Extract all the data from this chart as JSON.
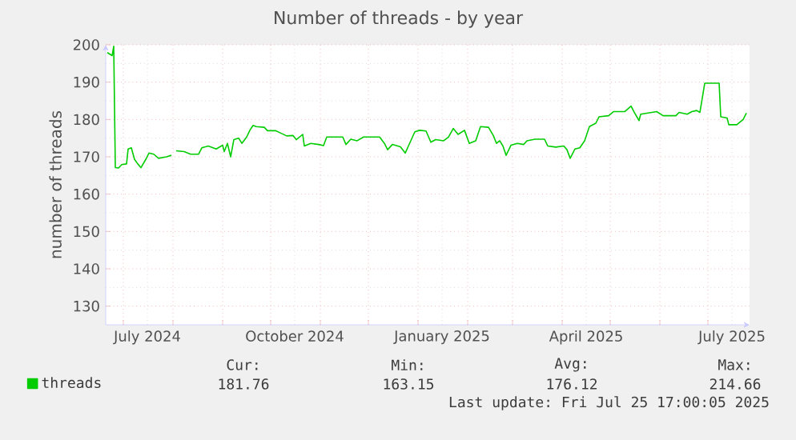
{
  "chart_data": {
    "type": "line",
    "title": "Number of threads - by year",
    "ylabel": "number of threads",
    "xlim": [
      "2024-06-20",
      "2025-07-27"
    ],
    "ylim": [
      125,
      200
    ],
    "yticks": [
      130,
      140,
      150,
      160,
      170,
      180,
      190,
      200
    ],
    "xticks": [
      {
        "value": "2024-07-01",
        "label": null
      },
      {
        "value": "2024-07-16",
        "label": "July 2024"
      },
      {
        "value": "2024-08-01",
        "label": null
      },
      {
        "value": "2024-09-01",
        "label": null
      },
      {
        "value": "2024-10-01",
        "label": null
      },
      {
        "value": "2024-10-16",
        "label": "October 2024"
      },
      {
        "value": "2024-11-01",
        "label": null
      },
      {
        "value": "2024-12-01",
        "label": null
      },
      {
        "value": "2025-01-01",
        "label": null
      },
      {
        "value": "2025-01-16",
        "label": "January 2025"
      },
      {
        "value": "2025-02-01",
        "label": null
      },
      {
        "value": "2025-03-01",
        "label": null
      },
      {
        "value": "2025-04-01",
        "label": null
      },
      {
        "value": "2025-04-16",
        "label": "April 2025"
      },
      {
        "value": "2025-05-01",
        "label": null
      },
      {
        "value": "2025-06-01",
        "label": null
      },
      {
        "value": "2025-07-01",
        "label": null
      },
      {
        "value": "2025-07-16",
        "label": "July 2025"
      }
    ],
    "grid": true,
    "legend": "bottom left",
    "x": [
      "2024-06-21",
      "2024-06-24",
      "2024-06-25",
      "2024-06-26",
      "2024-06-28",
      "2024-06-30",
      "2024-07-03",
      "2024-07-04",
      "2024-07-06",
      "2024-07-08",
      "2024-07-10",
      "2024-07-12",
      "2024-07-15",
      "2024-07-17",
      "2024-07-20",
      "2024-07-23",
      "2024-07-28",
      "2024-07-31",
      "2024-08-01",
      "2024-08-03",
      "2024-08-08",
      "2024-08-12",
      "2024-08-17",
      "2024-08-19",
      "2024-08-23",
      "2024-08-28",
      "2024-09-01",
      "2024-09-02",
      "2024-09-04",
      "2024-09-06",
      "2024-09-08",
      "2024-09-11",
      "2024-09-13",
      "2024-09-16",
      "2024-09-18",
      "2024-09-20",
      "2024-09-22",
      "2024-09-27",
      "2024-09-29",
      "2024-10-04",
      "2024-10-07",
      "2024-10-11",
      "2024-10-15",
      "2024-10-17",
      "2024-10-21",
      "2024-10-22",
      "2024-10-26",
      "2024-10-31",
      "2024-11-03",
      "2024-11-05",
      "2024-11-15",
      "2024-11-17",
      "2024-11-20",
      "2024-11-24",
      "2024-11-28",
      "2024-12-08",
      "2024-12-11",
      "2024-12-13",
      "2024-12-16",
      "2024-12-21",
      "2024-12-24",
      "2024-12-26",
      "2024-12-30",
      "2025-01-02",
      "2025-01-06",
      "2025-01-09",
      "2025-01-12",
      "2025-01-17",
      "2025-01-20",
      "2025-01-23",
      "2025-01-26",
      "2025-01-30",
      "2025-02-02",
      "2025-02-06",
      "2025-02-09",
      "2025-02-14",
      "2025-02-17",
      "2025-02-19",
      "2025-02-21",
      "2025-02-23",
      "2025-02-25",
      "2025-02-28",
      "2025-03-04",
      "2025-03-08",
      "2025-03-10",
      "2025-03-15",
      "2025-03-21",
      "2025-03-23",
      "2025-03-28",
      "2025-04-02",
      "2025-04-04",
      "2025-04-06",
      "2025-04-09",
      "2025-04-12",
      "2025-04-15",
      "2025-04-18",
      "2025-04-22",
      "2025-04-24",
      "2025-04-30",
      "2025-05-03",
      "2025-05-10",
      "2025-05-14",
      "2025-05-16",
      "2025-05-19",
      "2025-05-20",
      "2025-05-27",
      "2025-05-30",
      "2025-06-03",
      "2025-06-11",
      "2025-06-13",
      "2025-06-18",
      "2025-06-21",
      "2025-06-24",
      "2025-06-26",
      "2025-06-29",
      "2025-07-08",
      "2025-07-09",
      "2025-07-13",
      "2025-07-14",
      "2025-07-19",
      "2025-07-23",
      "2025-07-25"
    ],
    "series": [
      {
        "name": "threads",
        "color": "#00cc00",
        "values": [
          197.9,
          197.1,
          199.6,
          167.1,
          167.0,
          167.9,
          168.1,
          172.1,
          172.4,
          169.3,
          168.1,
          167.1,
          169.3,
          171.0,
          170.7,
          169.6,
          170.0,
          170.4,
          null,
          171.6,
          171.4,
          170.7,
          170.7,
          172.4,
          172.9,
          172.1,
          173.1,
          171.4,
          173.6,
          170.0,
          174.6,
          175.0,
          173.6,
          175.3,
          177.1,
          178.4,
          178.1,
          177.9,
          177.0,
          177.0,
          176.4,
          175.6,
          175.7,
          174.6,
          176.0,
          172.9,
          173.6,
          173.3,
          173.0,
          175.3,
          175.3,
          173.3,
          174.7,
          174.3,
          175.3,
          175.3,
          173.6,
          171.9,
          173.3,
          172.7,
          171.0,
          172.9,
          176.7,
          177.1,
          176.9,
          173.9,
          174.6,
          174.3,
          175.3,
          177.6,
          176.0,
          177.1,
          173.6,
          174.3,
          178.1,
          177.9,
          175.7,
          173.6,
          174.3,
          172.9,
          170.4,
          173.1,
          173.6,
          173.3,
          174.3,
          174.7,
          174.7,
          172.9,
          172.6,
          172.9,
          171.9,
          169.6,
          172.1,
          172.4,
          174.3,
          178.1,
          179.0,
          180.7,
          181.0,
          182.1,
          182.1,
          183.6,
          181.9,
          179.7,
          181.4,
          181.9,
          182.1,
          181.0,
          181.0,
          181.9,
          181.4,
          182.1,
          182.4,
          181.9,
          189.7,
          189.7,
          180.7,
          180.4,
          178.6,
          178.6,
          180.0,
          181.7
        ]
      }
    ],
    "annotations": [
      "Cur:",
      "181.76",
      "Min:",
      "163.15",
      "Avg:",
      "176.12",
      "Max:",
      "214.66",
      "Last update: Fri Jul 25 17:00:05 2025"
    ]
  }
}
